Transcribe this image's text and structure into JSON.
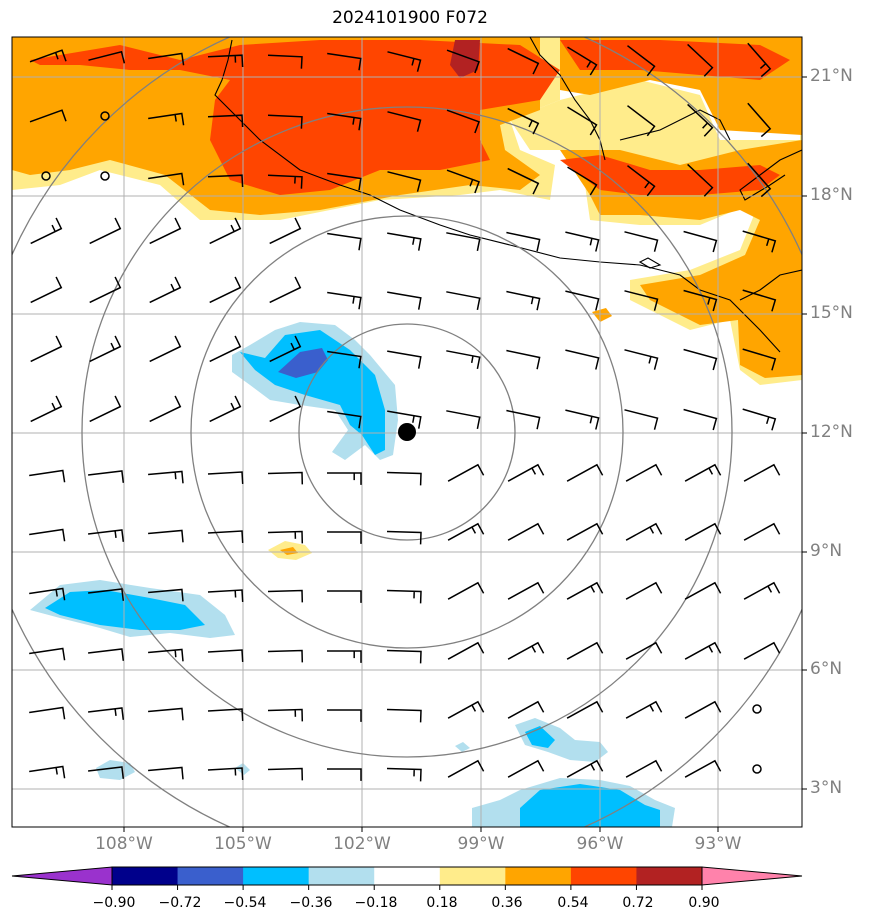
{
  "title": "2024101900 F072",
  "lat_labels": [
    "21°N",
    "18°N",
    "15°N",
    "12°N",
    "9°N",
    "6°N",
    "3°N"
  ],
  "lon_labels": [
    "108°W",
    "105°W",
    "102°W",
    "99°W",
    "96°W",
    "93°W"
  ],
  "colorbar": {
    "ticks": [
      "−0.90",
      "−0.72",
      "−0.54",
      "−0.36",
      "−0.18",
      "0.18",
      "0.36",
      "0.54",
      "0.72",
      "0.90"
    ],
    "colors": [
      "#9a32cd",
      "#00008b",
      "#3a5fcd",
      "#00bfff",
      "#b2dfee",
      "#ffffff",
      "#ffec8b",
      "#ffa500",
      "#ff4500",
      "#b22222",
      "#ff82ab"
    ]
  },
  "storm_center": {
    "lat": 12.0,
    "lon": -100.9
  },
  "range_rings": [
    "circle-1",
    "circle-2",
    "circle-3",
    "circle-4"
  ]
}
